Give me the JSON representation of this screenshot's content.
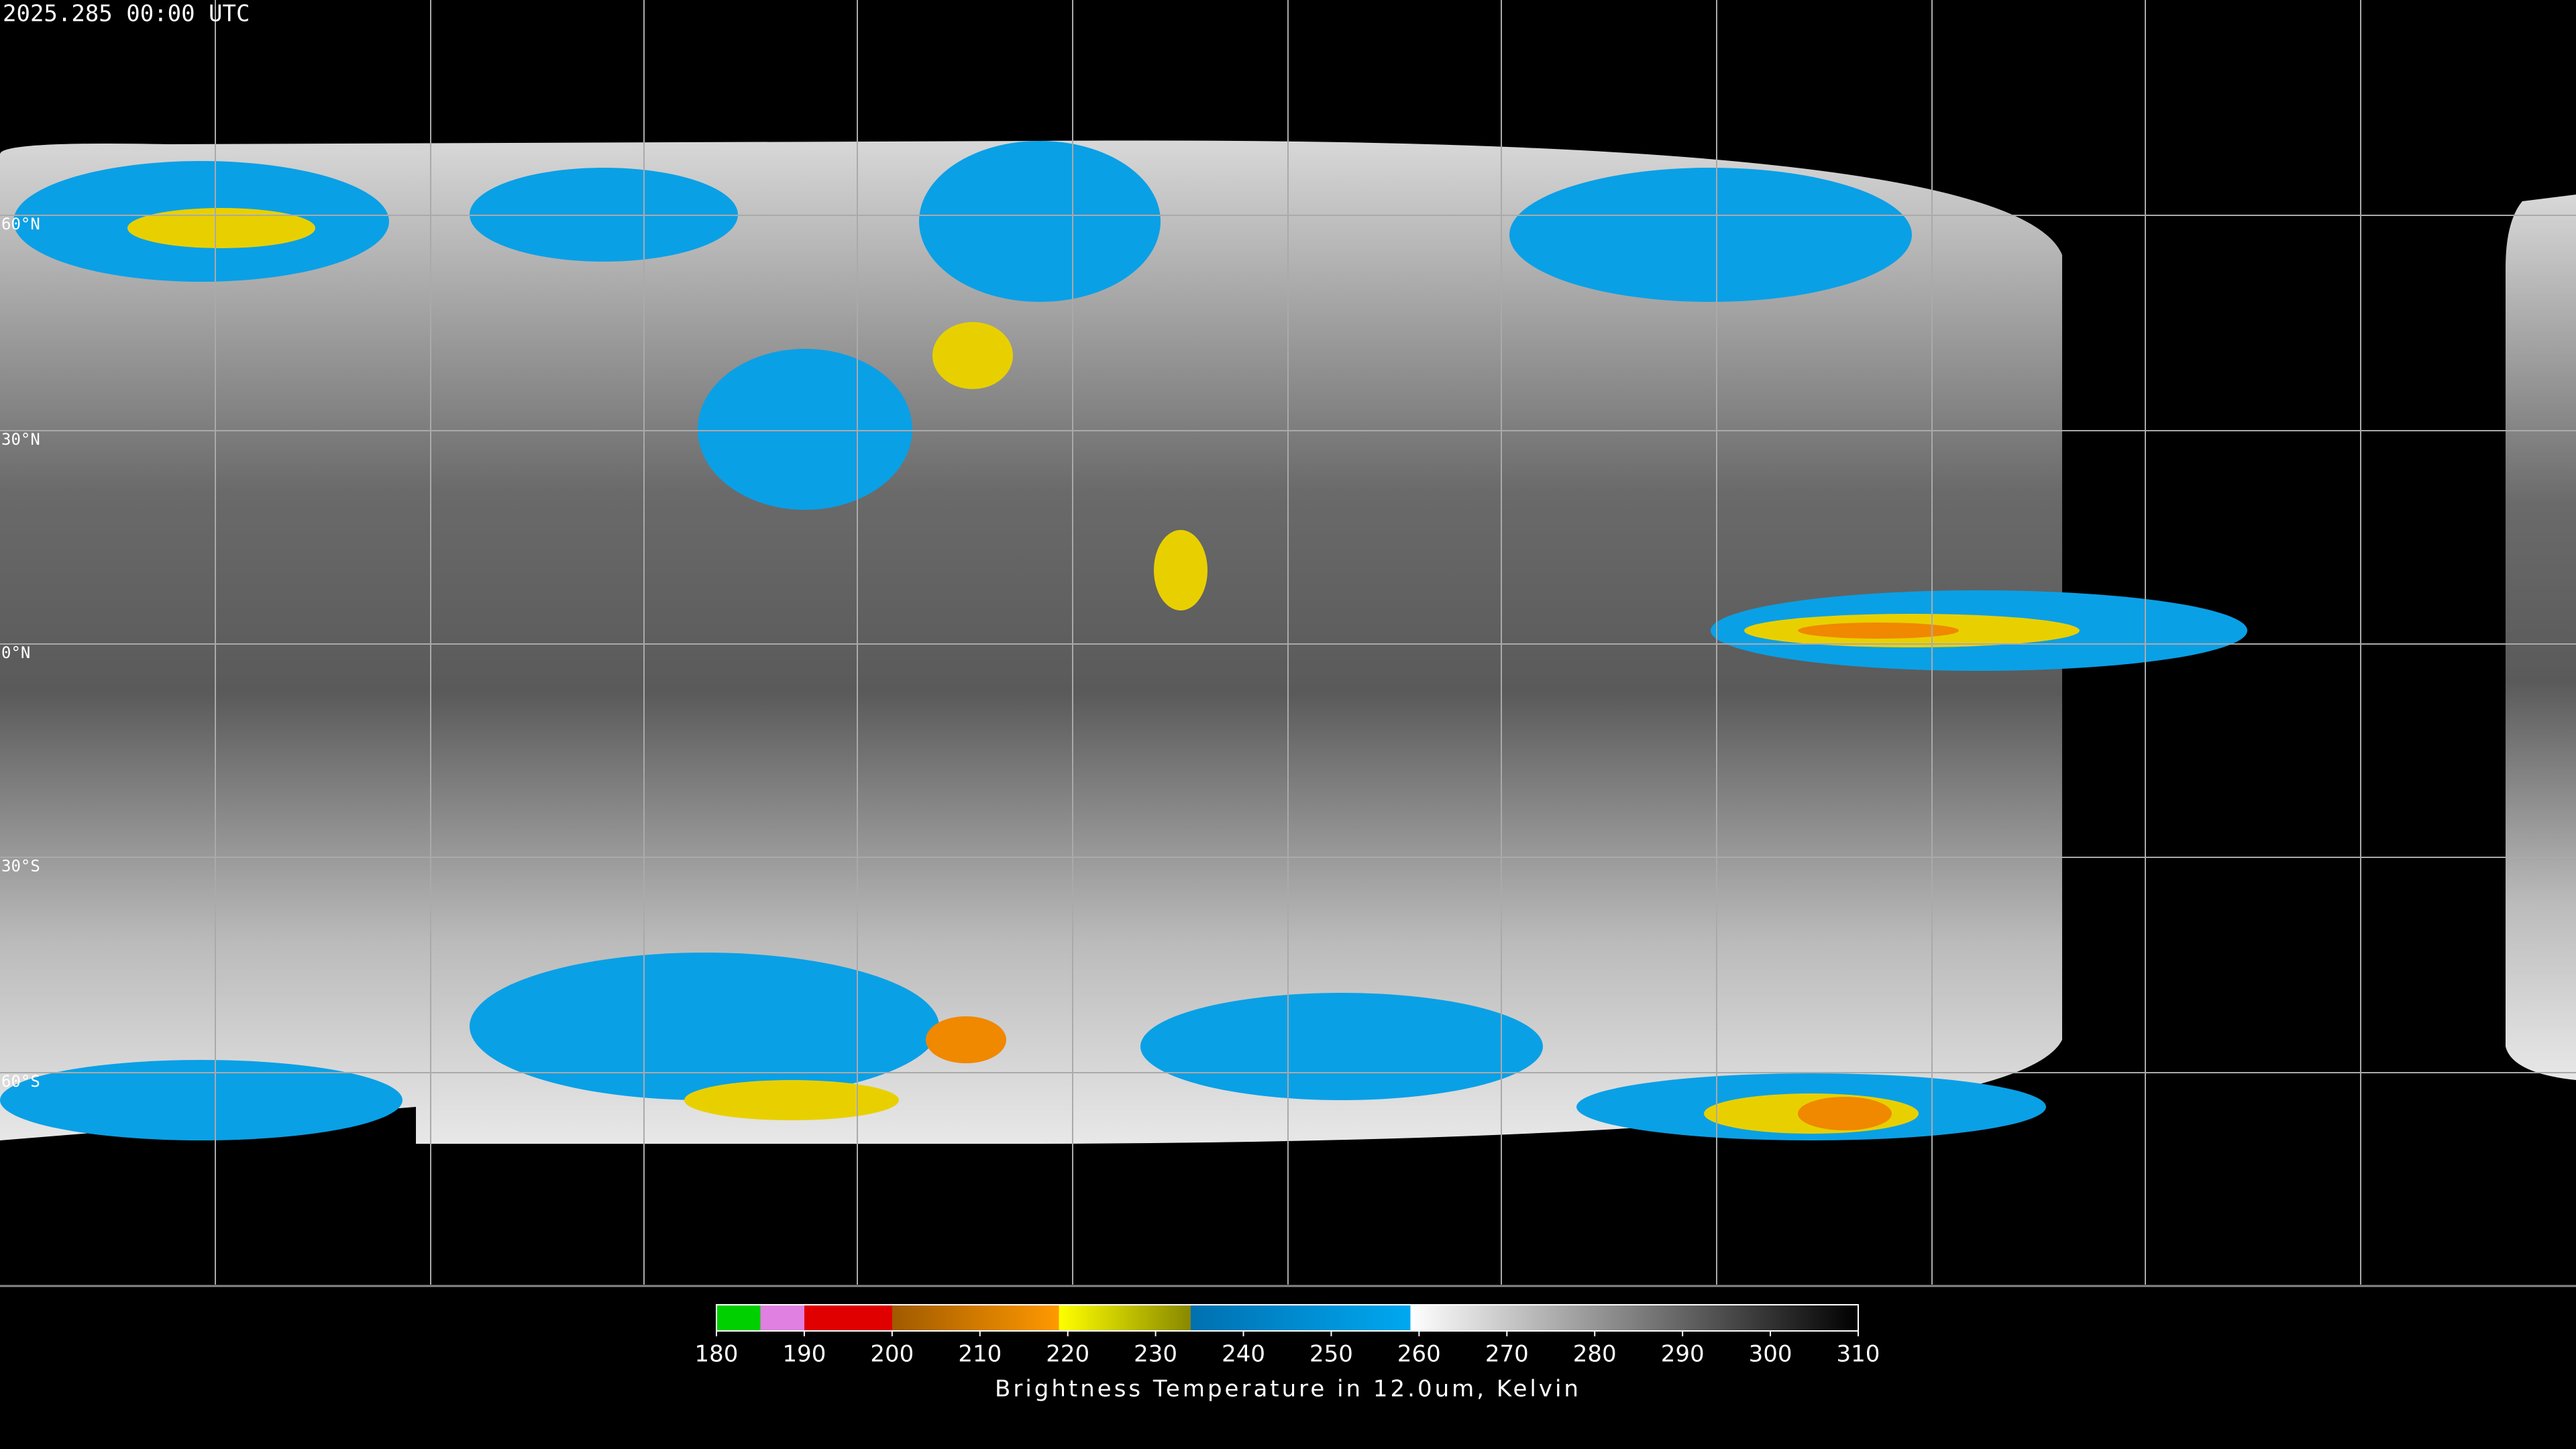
{
  "header": {
    "title": "2025.285 00:00 UTC"
  },
  "map": {
    "lat_labels": [
      "60°N",
      "30°N",
      "0°N",
      "30°S",
      "60°S"
    ]
  },
  "colorbar": {
    "range": [
      180,
      310
    ],
    "ticks": [
      180,
      190,
      200,
      210,
      220,
      230,
      240,
      250,
      260,
      270,
      280,
      290,
      300,
      310
    ],
    "label": "Brightness Temperature in 12.0um, Kelvin",
    "colormap": [
      {
        "value": 180,
        "color": "#00d000"
      },
      {
        "value": 185,
        "color": "#00d000"
      },
      {
        "value": 185,
        "color": "#e080e0"
      },
      {
        "value": 190,
        "color": "#e080e0"
      },
      {
        "value": 190,
        "color": "#e00000"
      },
      {
        "value": 200,
        "color": "#e00000"
      },
      {
        "value": 200,
        "color": "#a05a00"
      },
      {
        "value": 219,
        "color": "#ff9900"
      },
      {
        "value": 219,
        "color": "#ffff00"
      },
      {
        "value": 234,
        "color": "#888800"
      },
      {
        "value": 234,
        "color": "#0070b0"
      },
      {
        "value": 259,
        "color": "#00a8f0"
      },
      {
        "value": 259,
        "color": "#ffffff"
      },
      {
        "value": 310,
        "color": "#000000"
      }
    ]
  }
}
